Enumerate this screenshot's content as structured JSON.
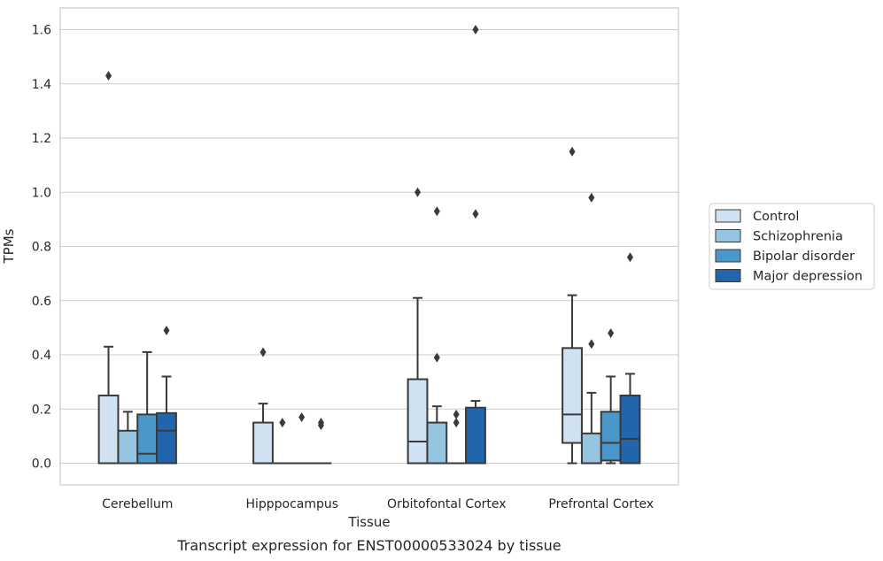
{
  "chart_data": {
    "type": "box",
    "title": "",
    "caption": "Transcript expression for ENST00000533024 by tissue",
    "xlabel": "Tissue",
    "ylabel": "TPMs",
    "ylim": [
      -0.08,
      1.68
    ],
    "yticks": [
      0.0,
      0.2,
      0.4,
      0.6,
      0.8,
      1.0,
      1.2,
      1.4,
      1.6
    ],
    "ytick_labels": [
      "0.0",
      "0.2",
      "0.4",
      "0.6",
      "0.8",
      "1.0",
      "1.2",
      "1.4",
      "1.6"
    ],
    "grid": "y",
    "legend_position": "right",
    "categories": [
      "Cerebellum",
      "Hipppocampus",
      "Orbitofontal Cortex",
      "Prefrontal Cortex"
    ],
    "series": [
      {
        "name": "Control",
        "color": "#d0e1f2",
        "boxes": [
          {
            "q1": 0.0,
            "median": 0.0,
            "q3": 0.25,
            "whislo": 0.0,
            "whishi": 0.43,
            "fliers": [
              1.43
            ]
          },
          {
            "q1": 0.0,
            "median": 0.0,
            "q3": 0.15,
            "whislo": 0.0,
            "whishi": 0.22,
            "fliers": [
              0.41
            ]
          },
          {
            "q1": 0.0,
            "median": 0.08,
            "q3": 0.31,
            "whislo": 0.0,
            "whishi": 0.61,
            "fliers": [
              1.0
            ]
          },
          {
            "q1": 0.075,
            "median": 0.18,
            "q3": 0.425,
            "whislo": 0.0,
            "whishi": 0.62,
            "fliers": [
              1.15
            ]
          }
        ]
      },
      {
        "name": "Schizophrenia",
        "color": "#94c4df",
        "boxes": [
          {
            "q1": 0.0,
            "median": 0.0,
            "q3": 0.12,
            "whislo": 0.0,
            "whishi": 0.19,
            "fliers": []
          },
          {
            "q1": 0.0,
            "median": 0.0,
            "q3": 0.0,
            "whislo": 0.0,
            "whishi": 0.0,
            "fliers": [
              0.15
            ]
          },
          {
            "q1": 0.0,
            "median": 0.0,
            "q3": 0.15,
            "whislo": 0.0,
            "whishi": 0.21,
            "fliers": [
              0.93,
              0.39
            ]
          },
          {
            "q1": 0.0,
            "median": 0.0,
            "q3": 0.11,
            "whislo": 0.0,
            "whishi": 0.26,
            "fliers": [
              0.98,
              0.44
            ]
          }
        ]
      },
      {
        "name": "Bipolar disorder",
        "color": "#4a98c9",
        "boxes": [
          {
            "q1": 0.0,
            "median": 0.035,
            "q3": 0.18,
            "whislo": 0.0,
            "whishi": 0.41,
            "fliers": []
          },
          {
            "q1": 0.0,
            "median": 0.0,
            "q3": 0.0,
            "whislo": 0.0,
            "whishi": 0.0,
            "fliers": [
              0.17
            ]
          },
          {
            "q1": 0.0,
            "median": 0.0,
            "q3": 0.0,
            "whislo": 0.0,
            "whishi": 0.0,
            "fliers": [
              0.18,
              0.15
            ]
          },
          {
            "q1": 0.01,
            "median": 0.075,
            "q3": 0.19,
            "whislo": 0.0,
            "whishi": 0.32,
            "fliers": [
              0.48
            ]
          }
        ]
      },
      {
        "name": "Major depression",
        "color": "#2166ac",
        "boxes": [
          {
            "q1": 0.0,
            "median": 0.12,
            "q3": 0.185,
            "whislo": 0.0,
            "whishi": 0.32,
            "fliers": [
              0.49
            ]
          },
          {
            "q1": 0.0,
            "median": 0.0,
            "q3": 0.0,
            "whislo": 0.0,
            "whishi": 0.0,
            "fliers": [
              0.15,
              0.14
            ]
          },
          {
            "q1": 0.0,
            "median": 0.0,
            "q3": 0.205,
            "whislo": 0.0,
            "whishi": 0.23,
            "fliers": [
              1.6,
              0.92
            ]
          },
          {
            "q1": 0.0,
            "median": 0.09,
            "q3": 0.25,
            "whislo": 0.0,
            "whishi": 0.33,
            "fliers": [
              0.76
            ]
          }
        ]
      }
    ]
  }
}
